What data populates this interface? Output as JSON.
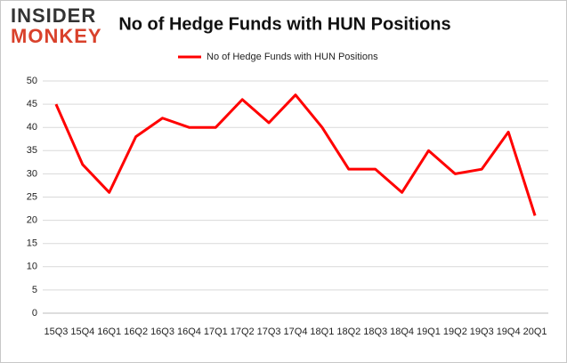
{
  "logo": {
    "top": "INSIDER",
    "bottom": "MONKEY"
  },
  "chart_data": {
    "type": "line",
    "title": "No of Hedge Funds with HUN Positions",
    "categories": [
      "15Q3",
      "15Q4",
      "16Q1",
      "16Q2",
      "16Q3",
      "16Q4",
      "17Q1",
      "17Q2",
      "17Q3",
      "17Q4",
      "18Q1",
      "18Q2",
      "18Q3",
      "18Q4",
      "19Q1",
      "19Q2",
      "19Q3",
      "19Q4",
      "20Q1"
    ],
    "series": [
      {
        "name": "No of Hedge Funds with HUN  Positions",
        "color": "#ff0000",
        "values": [
          45,
          32,
          26,
          38,
          42,
          40,
          40,
          46,
          41,
          47,
          40,
          31,
          31,
          26,
          35,
          30,
          31,
          39,
          21
        ]
      }
    ],
    "ylim": [
      0,
      50
    ],
    "yticks": [
      0,
      5,
      10,
      15,
      20,
      25,
      30,
      35,
      40,
      45,
      50
    ],
    "grid": true,
    "legend": "top"
  }
}
